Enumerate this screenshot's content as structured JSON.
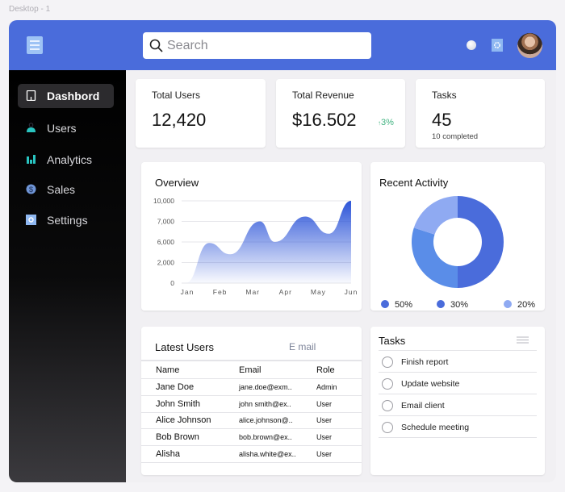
{
  "frame_label": "Desktop - 1",
  "header": {
    "search_placeholder": "Search",
    "colors": {
      "header": "#4a6cdb"
    }
  },
  "sidebar": {
    "items": [
      {
        "label": "Dashbord",
        "icon": "tablet-icon",
        "active": true
      },
      {
        "label": "Users",
        "icon": "user-icon"
      },
      {
        "label": "Analytics",
        "icon": "bar-chart-icon"
      },
      {
        "label": "Sales",
        "icon": "dollar-coin-icon"
      },
      {
        "label": "Settings",
        "icon": "gear-icon"
      }
    ]
  },
  "stats": [
    {
      "title": "Total Users",
      "value": "12,420"
    },
    {
      "title": "Total Revenue",
      "value": "$16.502",
      "change": "3%",
      "change_color": "#3fb27f"
    },
    {
      "title": "Tasks",
      "value": "45",
      "sub": "10 completed"
    }
  ],
  "overview": {
    "title": "Overview"
  },
  "chart_data": [
    {
      "type": "area",
      "title": "Overview",
      "x_ticks": [
        "Jan",
        "Feb",
        "Mar",
        "Apr",
        "May",
        "Jun"
      ],
      "y_ticks": [
        "0",
        "2,000",
        "6,000",
        "7,000",
        "10,000"
      ],
      "y_tick_values": [
        0,
        2000,
        6000,
        7000,
        10000
      ],
      "grid": true,
      "series": [
        {
          "points": [
            {
              "x": "Jan",
              "y": 0
            },
            {
              "x": "mid-Jan",
              "y": 5800
            },
            {
              "x": "mid-Feb",
              "y": 3600
            },
            {
              "x": "early Mar",
              "y": 7000
            },
            {
              "x": "mid-Mar",
              "y": 6000
            },
            {
              "x": "mid-Apr",
              "y": 7700
            },
            {
              "x": "early May",
              "y": 6400
            },
            {
              "x": "Jun",
              "y": 10000
            }
          ],
          "month_positions": [
            0.95,
            1.67,
            2.31,
            3.22,
            3.67,
            4.6,
            5.32,
            6.0
          ]
        }
      ],
      "color": "#2d55d8"
    },
    {
      "type": "pie",
      "title": "Recent Activity",
      "donut": true,
      "slices": [
        {
          "label": "50%",
          "value": 50,
          "color": "#4a6cdb"
        },
        {
          "label": "30%",
          "value": 30,
          "color": "#5a8de8"
        },
        {
          "label": "20%",
          "value": 20,
          "color": "#8faaf2"
        }
      ],
      "legend_colors": [
        "#4a6cdb",
        "#4a6cdb",
        "#8faaf2"
      ],
      "legend": "bottom"
    }
  ],
  "users": {
    "title": "Latest Users",
    "filter": "E mail",
    "columns": [
      "Name",
      "Email",
      "Role"
    ],
    "rows": [
      [
        "Jane Doe",
        "jane.doe@exm..",
        "Admin"
      ],
      [
        "John Smith",
        "john smith@ex..",
        "User"
      ],
      [
        "Alice Johnson",
        "alice.johnson@..",
        "User"
      ],
      [
        "Bob Brown",
        "bob.brown@ex..",
        "User"
      ],
      [
        "Alisha",
        "alisha.white@ex..",
        "User"
      ]
    ]
  },
  "tasks": {
    "title": "Tasks",
    "items": [
      "Finish report",
      "Update website",
      "Email client",
      "Schedule meeting"
    ]
  }
}
